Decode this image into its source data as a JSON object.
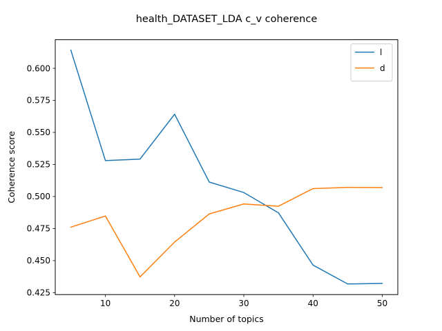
{
  "chart_data": {
    "type": "line",
    "title": "health_DATASET_LDA c_v coherence",
    "xlabel": "Number of topics",
    "ylabel": "Coherence score",
    "x": [
      5,
      10,
      15,
      20,
      25,
      30,
      35,
      40,
      45,
      50
    ],
    "xlim": [
      2.75,
      52.25
    ],
    "ylim": [
      0.4235,
      0.6223
    ],
    "xticks": [
      10,
      20,
      30,
      40,
      50
    ],
    "xtick_labels": [
      "10",
      "20",
      "30",
      "40",
      "50"
    ],
    "yticks": [
      0.425,
      0.45,
      0.475,
      0.5,
      0.525,
      0.55,
      0.575,
      0.6
    ],
    "ytick_labels": [
      "0.425",
      "0.450",
      "0.475",
      "0.500",
      "0.525",
      "0.550",
      "0.575",
      "0.600"
    ],
    "grid": false,
    "legend_position": "upper right",
    "series": [
      {
        "name": "l",
        "color": "#1f77b4",
        "values": [
          0.6142,
          0.528,
          0.5292,
          0.5642,
          0.5113,
          0.5031,
          0.4873,
          0.4465,
          0.4318,
          0.4322
        ]
      },
      {
        "name": "d",
        "color": "#ff7f0e",
        "values": [
          0.4761,
          0.4848,
          0.4373,
          0.4645,
          0.4864,
          0.4942,
          0.4924,
          0.5062,
          0.5071,
          0.507
        ]
      }
    ]
  }
}
